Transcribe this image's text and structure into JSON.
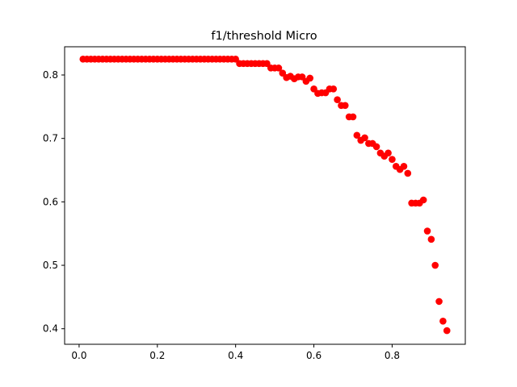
{
  "chart_data": {
    "type": "scatter",
    "title": "f1/threshold Micro",
    "xlabel": "",
    "ylabel": "",
    "xlim": [
      -0.037,
      0.987
    ],
    "ylim": [
      0.3755,
      0.8445
    ],
    "x_ticks": [
      {
        "value": 0.0,
        "label": "0.0"
      },
      {
        "value": 0.2,
        "label": "0.2"
      },
      {
        "value": 0.4,
        "label": "0.4"
      },
      {
        "value": 0.6,
        "label": "0.6"
      },
      {
        "value": 0.8,
        "label": "0.8"
      }
    ],
    "y_ticks": [
      {
        "value": 0.4,
        "label": "0.4"
      },
      {
        "value": 0.5,
        "label": "0.5"
      },
      {
        "value": 0.6,
        "label": "0.6"
      },
      {
        "value": 0.7,
        "label": "0.7"
      },
      {
        "value": 0.8,
        "label": "0.8"
      }
    ],
    "grid": false,
    "legend": "none",
    "marker_color": "#ff0000",
    "series": [
      {
        "x": [
          0.01,
          0.02,
          0.03,
          0.04,
          0.05,
          0.06,
          0.07,
          0.08,
          0.09,
          0.1,
          0.11,
          0.12,
          0.13,
          0.14,
          0.15,
          0.16,
          0.17,
          0.18,
          0.19,
          0.2,
          0.21,
          0.22,
          0.23,
          0.24,
          0.25,
          0.26,
          0.27,
          0.28,
          0.29,
          0.3,
          0.31,
          0.32,
          0.33,
          0.34,
          0.35,
          0.36,
          0.37,
          0.38,
          0.39,
          0.4,
          0.41,
          0.42,
          0.43,
          0.44,
          0.45,
          0.46,
          0.47,
          0.48,
          0.49,
          0.5,
          0.51,
          0.52,
          0.53,
          0.54,
          0.55,
          0.56,
          0.57,
          0.58,
          0.59,
          0.6,
          0.61,
          0.62,
          0.63,
          0.64,
          0.65,
          0.66,
          0.67,
          0.68,
          0.69,
          0.7,
          0.71,
          0.72,
          0.73,
          0.74,
          0.75,
          0.76,
          0.77,
          0.78,
          0.79,
          0.8,
          0.81,
          0.82,
          0.83,
          0.84,
          0.85,
          0.86,
          0.87,
          0.88,
          0.89,
          0.9,
          0.91,
          0.92,
          0.93,
          0.94
        ],
        "y": [
          0.825,
          0.825,
          0.825,
          0.825,
          0.825,
          0.825,
          0.825,
          0.825,
          0.825,
          0.825,
          0.825,
          0.825,
          0.825,
          0.825,
          0.825,
          0.825,
          0.825,
          0.825,
          0.825,
          0.825,
          0.825,
          0.825,
          0.825,
          0.825,
          0.825,
          0.825,
          0.825,
          0.825,
          0.825,
          0.825,
          0.825,
          0.825,
          0.825,
          0.825,
          0.825,
          0.825,
          0.825,
          0.825,
          0.825,
          0.825,
          0.818,
          0.818,
          0.818,
          0.818,
          0.818,
          0.818,
          0.818,
          0.818,
          0.811,
          0.811,
          0.811,
          0.803,
          0.796,
          0.798,
          0.794,
          0.797,
          0.797,
          0.79,
          0.795,
          0.778,
          0.771,
          0.772,
          0.772,
          0.778,
          0.778,
          0.761,
          0.752,
          0.752,
          0.734,
          0.734,
          0.705,
          0.697,
          0.701,
          0.692,
          0.692,
          0.687,
          0.677,
          0.672,
          0.677,
          0.667,
          0.656,
          0.651,
          0.656,
          0.645,
          0.598,
          0.598,
          0.598,
          0.603,
          0.554,
          0.541,
          0.5,
          0.443,
          0.412,
          0.397
        ]
      }
    ]
  }
}
